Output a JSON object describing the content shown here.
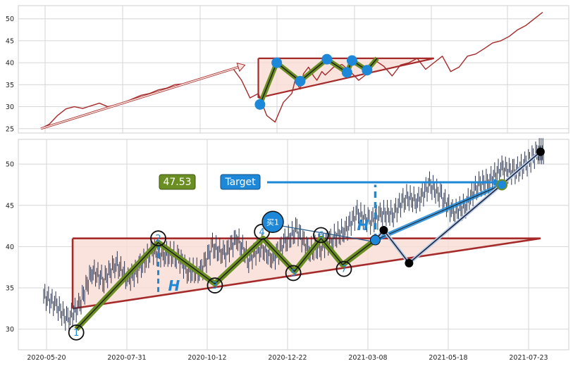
{
  "chart_data": [
    {
      "type": "line",
      "name_hint": "overview",
      "ylim": [
        24,
        53
      ],
      "yticks": [
        25,
        30,
        35,
        40,
        45,
        50
      ],
      "xlim": [
        0,
        300
      ],
      "x_grid": [
        40,
        110,
        180,
        250,
        315
      ],
      "series": [
        {
          "color": "#a52a2a",
          "x": [
            0,
            5,
            10,
            15,
            20,
            25,
            30,
            35,
            40,
            45,
            50,
            55,
            60,
            65,
            70,
            75,
            80,
            85,
            90,
            95,
            100,
            105,
            110,
            115,
            120,
            125,
            130,
            135,
            140,
            145,
            150,
            152,
            155,
            157,
            160,
            163,
            165,
            168,
            170,
            175,
            180,
            185,
            190,
            195,
            200,
            205,
            210,
            215,
            220,
            225,
            230,
            235,
            240,
            245,
            250,
            255,
            260,
            265,
            270,
            275,
            280,
            285,
            290,
            295,
            300
          ],
          "y": [
            25,
            26,
            28,
            29.5,
            30,
            29.6,
            30.2,
            30.8,
            30,
            30.4,
            31,
            31.8,
            32.6,
            33,
            33.8,
            34.2,
            35,
            35.2,
            35.8,
            36.4,
            37,
            37.6,
            38.2,
            38.6,
            36,
            32,
            33,
            28,
            26.5,
            31,
            33,
            36,
            34,
            37.5,
            39,
            37,
            36,
            38,
            37.2,
            39,
            39.6,
            38,
            36,
            37.5,
            40.5,
            39.2,
            37,
            39.5,
            40,
            41,
            38.5,
            40,
            41.5,
            38,
            39,
            41.5,
            42,
            43.2,
            44.5,
            45,
            46,
            47.5,
            48.5,
            50,
            51.5
          ]
        }
      ],
      "pattern": {
        "rect": {
          "x0": 130,
          "x1": 180,
          "y0": 32,
          "y1": 41
        },
        "trend_start": [
          130,
          32
        ],
        "trend_end": [
          235,
          41
        ],
        "resistance_end": [
          235,
          41
        ],
        "zigzag_x": [
          131,
          141,
          155,
          171,
          183,
          186,
          195,
          201
        ],
        "zigzag_y": [
          30.5,
          40,
          35.8,
          40.8,
          37.8,
          40.5,
          38.3,
          41
        ]
      },
      "arrow_start": [
        0,
        25
      ],
      "arrow_end": [
        118,
        39
      ]
    },
    {
      "type": "line",
      "name_hint": "detail",
      "ylim": [
        27.5,
        53
      ],
      "yticks": [
        30,
        35,
        40,
        45,
        50
      ],
      "xlim": [
        0,
        415
      ],
      "xticks": [
        {
          "x": 25,
          "label": "2020-05-20"
        },
        {
          "x": 95,
          "label": "2020-07-31"
        },
        {
          "x": 165,
          "label": "2020-10-12"
        },
        {
          "x": 235,
          "label": "2020-12-22"
        },
        {
          "x": 305,
          "label": "2021-03-08"
        },
        {
          "x": 375,
          "label": "2021-05-18"
        },
        {
          "x": 445,
          "label": "2021-07-23"
        }
      ],
      "series": [
        {
          "color": "#2b3550",
          "x": [
            0,
            10,
            20,
            30,
            40,
            50,
            60,
            70,
            80,
            90,
            100,
            110,
            120,
            130,
            140,
            150,
            160,
            170,
            180,
            190,
            200,
            210,
            220,
            230,
            240,
            250,
            260,
            270,
            280,
            290,
            300,
            310,
            320,
            330,
            340,
            350,
            360,
            370,
            380,
            390,
            400,
            410,
            415
          ],
          "y": [
            34,
            33,
            31,
            33,
            37,
            36,
            38,
            36,
            37.5,
            39.5,
            39,
            39,
            37,
            37,
            40,
            39,
            41,
            38.5,
            40,
            38.5,
            40.5,
            42,
            39.5,
            40,
            41,
            42,
            44,
            43,
            44,
            44,
            46,
            45.5,
            47.5,
            46,
            44,
            45,
            47.5,
            48,
            49.5,
            49,
            50,
            51.5,
            51.5
          ]
        }
      ],
      "pattern": {
        "rect": {
          "x0": 24,
          "x1": 412,
          "y0": 32,
          "y1": 41
        },
        "trend_start": [
          24,
          32.5
        ],
        "trend_end": [
          412,
          41
        ]
      },
      "zigzag_x": [
        27,
        95,
        142,
        182,
        208,
        230,
        248,
        275
      ],
      "zigzag_y": [
        30,
        40.5,
        35.5,
        41,
        37,
        41,
        37.8,
        40.8
      ],
      "points": [
        {
          "x": 27,
          "y": 29.6,
          "label": "1"
        },
        {
          "x": 95,
          "y": 41,
          "label": "2"
        },
        {
          "x": 142,
          "y": 35.3,
          "label": "3"
        },
        {
          "x": 181,
          "y": 41.8,
          "label": "4"
        },
        {
          "x": 207,
          "y": 36.8,
          "label": "5"
        },
        {
          "x": 230,
          "y": 41.4,
          "label": "6"
        },
        {
          "x": 249,
          "y": 37.3,
          "label": "7"
        }
      ],
      "black_points_x": [
        282,
        303,
        412
      ],
      "black_points_y": [
        42,
        38,
        51.5
      ],
      "breakout_x": 275,
      "breakout_y": 40.8,
      "target_x": 380,
      "target_y": 47.5,
      "H_height_x": 95,
      "H_height_y0": 34.5,
      "H_height_y1": 40.5,
      "H_line2_x": 275,
      "H_line2_y0": 40.8,
      "H_line2_y1": 47.5,
      "buy_label_at": [
        190,
        43
      ]
    }
  ],
  "labels": {
    "target_value": "47.53",
    "target_text": "Target",
    "buy_text": "买1",
    "H": "H"
  },
  "colors": {
    "price_top": "#a52a2a",
    "price_bottom": "#2b3550",
    "pattern_line": "#a52a2a",
    "pattern_fill": "#f9dcd4",
    "zigzag_outer": "#6b8e23",
    "zigzag_inner": "#1e1e1e",
    "blue": "#1e88d8",
    "value_box": "#6b8e23",
    "target_box": "#1e88d8"
  }
}
